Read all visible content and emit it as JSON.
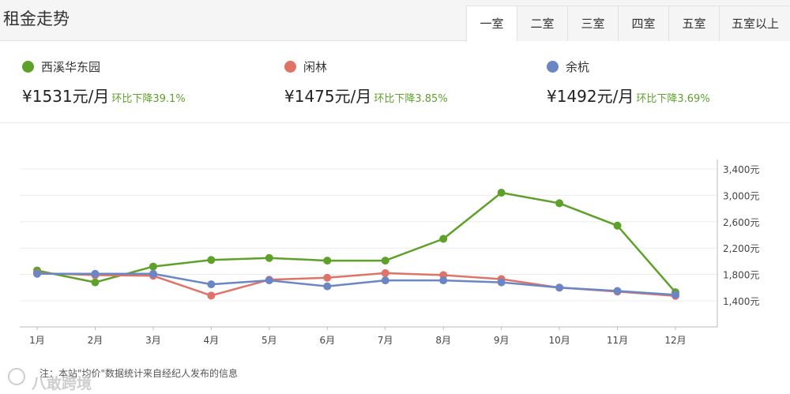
{
  "header": {
    "title": "租金走势",
    "tabs": [
      "一室",
      "二室",
      "三室",
      "四室",
      "五室",
      "五室以上"
    ],
    "active_tab": "一室"
  },
  "legend": [
    {
      "name": "西溪华东园",
      "price": "¥1531元/月",
      "change": "环比下降39.1%",
      "color": "#5ea12a"
    },
    {
      "name": "闲林",
      "price": "¥1475元/月",
      "change": "环比下降3.85%",
      "color": "#e07367"
    },
    {
      "name": "余杭",
      "price": "¥1492元/月",
      "change": "环比下降3.69%",
      "color": "#6a86c4"
    }
  ],
  "footnote": "注：本站\"均价\"数据统计来自经纪人发布的信息",
  "watermark": "八敢跨境",
  "chart_data": {
    "type": "line",
    "categories": [
      "1月",
      "2月",
      "3月",
      "4月",
      "5月",
      "6月",
      "7月",
      "8月",
      "9月",
      "10月",
      "11月",
      "12月"
    ],
    "ylim": [
      1000,
      3400
    ],
    "yticks": [
      1400,
      1800,
      2200,
      2600,
      3000,
      3400
    ],
    "ytick_labels": [
      "1,400元",
      "1,800元",
      "2,200元",
      "2,600元",
      "3,000元",
      "3,400元"
    ],
    "y_axis_position": "right",
    "grid": true,
    "series": [
      {
        "name": "西溪华东园",
        "color": "#5ea12a",
        "values": [
          1860,
          1680,
          1920,
          2020,
          2050,
          2010,
          2010,
          2340,
          3040,
          2880,
          2540,
          1530
        ]
      },
      {
        "name": "闲林",
        "color": "#e07367",
        "values": [
          1820,
          1790,
          1780,
          1480,
          1720,
          1750,
          1820,
          1790,
          1730,
          1600,
          1540,
          1475
        ]
      },
      {
        "name": "余杭",
        "color": "#6a86c4",
        "values": [
          1810,
          1810,
          1810,
          1650,
          1710,
          1620,
          1710,
          1710,
          1680,
          1600,
          1550,
          1492
        ]
      }
    ]
  }
}
